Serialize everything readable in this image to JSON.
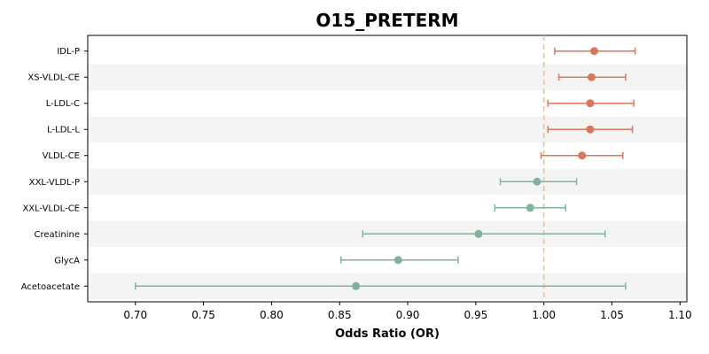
{
  "chart_data": {
    "type": "forest",
    "title": "O15_PRETERM",
    "xlabel": "Odds Ratio (OR)",
    "ylabel": "",
    "xlim": [
      0.665,
      1.105
    ],
    "xticks": [
      "0.70",
      "0.75",
      "0.80",
      "0.85",
      "0.90",
      "0.95",
      "1.00",
      "1.05",
      "1.10"
    ],
    "reference_line": 1.0,
    "grid": false,
    "alternating_row_shading": true,
    "colors": {
      "positive": "#d9775a",
      "negative": "#7fb39a",
      "reference": "#f2c27b",
      "band": "#f4f4f4"
    },
    "rows": [
      {
        "label": "IDL-P",
        "or": 1.037,
        "ci_low": 1.008,
        "ci_high": 1.067
      },
      {
        "label": "XS-VLDL-CE",
        "or": 1.035,
        "ci_low": 1.011,
        "ci_high": 1.06
      },
      {
        "label": "L-LDL-C",
        "or": 1.034,
        "ci_low": 1.003,
        "ci_high": 1.066
      },
      {
        "label": "L-LDL-L",
        "or": 1.034,
        "ci_low": 1.003,
        "ci_high": 1.065
      },
      {
        "label": "VLDL-CE",
        "or": 1.028,
        "ci_low": 0.998,
        "ci_high": 1.058
      },
      {
        "label": "XXL-VLDL-P",
        "or": 0.995,
        "ci_low": 0.968,
        "ci_high": 1.024
      },
      {
        "label": "XXL-VLDL-CE",
        "or": 0.99,
        "ci_low": 0.964,
        "ci_high": 1.016
      },
      {
        "label": "Creatinine",
        "or": 0.952,
        "ci_low": 0.867,
        "ci_high": 1.045
      },
      {
        "label": "GlycA",
        "or": 0.893,
        "ci_low": 0.851,
        "ci_high": 0.937
      },
      {
        "label": "Acetoacetate",
        "or": 0.862,
        "ci_low": 0.7,
        "ci_high": 1.06
      }
    ]
  }
}
